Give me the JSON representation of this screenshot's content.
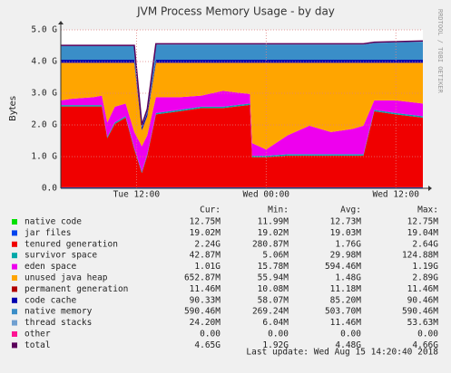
{
  "chart_data": {
    "type": "area",
    "title": "JVM Process Memory Usage - by day",
    "y_label": "Bytes",
    "watermark": "RRDTOOL / TOBI OETIKER",
    "xlim": [
      5,
      38.5
    ],
    "xticks": [
      {
        "value": 12,
        "label": "Tue 12:00"
      },
      {
        "value": 24,
        "label": "Wed 00:00"
      },
      {
        "value": 36,
        "label": "Wed 12:00"
      }
    ],
    "ylim": [
      0,
      5
    ],
    "yticks": [
      {
        "value": 0,
        "label": "0.0"
      },
      {
        "value": 1,
        "label": "1.0 G"
      },
      {
        "value": 2,
        "label": "2.0 G"
      },
      {
        "value": 3,
        "label": "3.0 G"
      },
      {
        "value": 4,
        "label": "4.0 G"
      },
      {
        "value": 5,
        "label": "5.0 G"
      }
    ],
    "grid": true,
    "x": [
      5,
      6,
      8,
      8.8,
      9.3,
      10,
      11,
      11.8,
      12.5,
      13,
      13.8,
      16,
      18,
      20,
      22.5,
      22.7,
      24,
      26,
      28,
      30,
      32,
      33,
      34,
      36,
      38.5
    ],
    "series": [
      {
        "name": "native code",
        "color": "#00e000",
        "stack": true,
        "values": [
          0.0128,
          0.0128,
          0.0128,
          0.0128,
          0.0128,
          0.0128,
          0.0128,
          0.0128,
          0.0128,
          0.0128,
          0.0128,
          0.0128,
          0.0128,
          0.0128,
          0.0128,
          0.0128,
          0.0128,
          0.0128,
          0.0128,
          0.0128,
          0.0128,
          0.0128,
          0.0128,
          0.0128,
          0.0128
        ]
      },
      {
        "name": "jar files",
        "color": "#0044ee",
        "stack": true,
        "values": [
          0.019,
          0.019,
          0.019,
          0.019,
          0.019,
          0.019,
          0.019,
          0.019,
          0.019,
          0.019,
          0.019,
          0.019,
          0.019,
          0.019,
          0.019,
          0.019,
          0.019,
          0.019,
          0.019,
          0.019,
          0.019,
          0.019,
          0.019,
          0.019,
          0.019
        ]
      },
      {
        "name": "tenured generation",
        "color": "#f00000",
        "stack": true,
        "values": [
          2.55,
          2.55,
          2.55,
          2.55,
          1.55,
          2.0,
          2.2,
          1.2,
          0.45,
          1.0,
          2.3,
          2.4,
          2.5,
          2.5,
          2.6,
          0.95,
          0.95,
          1.0,
          1.0,
          1.0,
          1.0,
          1.0,
          2.4,
          2.3,
          2.2
        ]
      },
      {
        "name": "survivor space",
        "color": "#00a8a8",
        "stack": true,
        "values": [
          0.043,
          0.043,
          0.043,
          0.043,
          0.043,
          0.043,
          0.043,
          0.043,
          0.043,
          0.043,
          0.043,
          0.043,
          0.043,
          0.043,
          0.043,
          0.043,
          0.043,
          0.043,
          0.043,
          0.043,
          0.043,
          0.043,
          0.043,
          0.043,
          0.043
        ]
      },
      {
        "name": "eden space",
        "color": "#ee00ee",
        "stack": true,
        "values": [
          0.15,
          0.2,
          0.25,
          0.3,
          0.45,
          0.5,
          0.4,
          0.5,
          0.8,
          0.6,
          0.5,
          0.4,
          0.35,
          0.5,
          0.3,
          0.4,
          0.2,
          0.6,
          0.9,
          0.7,
          0.8,
          0.9,
          0.3,
          0.4,
          0.4
        ]
      },
      {
        "name": "unused java heap",
        "color": "#ffa500",
        "stack": true,
        "values": [
          1.18,
          1.13,
          1.08,
          1.03,
          1.88,
          1.38,
          1.28,
          2.18,
          0.5,
          0.6,
          1.08,
          1.08,
          1.03,
          0.88,
          0.98,
          2.53,
          2.73,
          2.28,
          1.98,
          2.18,
          2.08,
          1.98,
          1.18,
          1.18,
          1.28
        ]
      },
      {
        "name": "permanent generation",
        "color": "#b00000",
        "stack": true,
        "values": [
          0.011,
          0.011,
          0.011,
          0.011,
          0.011,
          0.011,
          0.011,
          0.011,
          0.011,
          0.011,
          0.011,
          0.011,
          0.011,
          0.011,
          0.011,
          0.011,
          0.011,
          0.011,
          0.011,
          0.011,
          0.011,
          0.011,
          0.011,
          0.011,
          0.011
        ]
      },
      {
        "name": "code cache",
        "color": "#0000b0",
        "stack": true,
        "values": [
          0.09,
          0.09,
          0.09,
          0.09,
          0.09,
          0.09,
          0.09,
          0.09,
          0.09,
          0.09,
          0.09,
          0.09,
          0.09,
          0.09,
          0.09,
          0.09,
          0.09,
          0.09,
          0.09,
          0.09,
          0.09,
          0.09,
          0.09,
          0.09,
          0.09
        ]
      },
      {
        "name": "native memory",
        "color": "#3a8ec8",
        "stack": true,
        "values": [
          0.43,
          0.43,
          0.43,
          0.43,
          0.43,
          0.43,
          0.43,
          0.43,
          0.05,
          0.1,
          0.48,
          0.48,
          0.48,
          0.48,
          0.48,
          0.48,
          0.48,
          0.48,
          0.48,
          0.48,
          0.48,
          0.48,
          0.53,
          0.55,
          0.57
        ]
      },
      {
        "name": "thread stacks",
        "color": "#6f9fd0",
        "stack": true,
        "values": [
          0.024,
          0.024,
          0.024,
          0.024,
          0.024,
          0.024,
          0.024,
          0.024,
          0.024,
          0.024,
          0.024,
          0.024,
          0.024,
          0.024,
          0.024,
          0.024,
          0.024,
          0.024,
          0.024,
          0.024,
          0.024,
          0.024,
          0.024,
          0.024,
          0.024
        ]
      },
      {
        "name": "other",
        "color": "#ff1493",
        "stack": true,
        "values": [
          0,
          0,
          0,
          0,
          0,
          0,
          0,
          0,
          0,
          0,
          0,
          0,
          0,
          0,
          0,
          0,
          0,
          0,
          0,
          0,
          0,
          0,
          0,
          0,
          0
        ]
      },
      {
        "name": "total",
        "color": "#5a005a",
        "stack": false,
        "values": [
          4.51,
          4.51,
          4.51,
          4.51,
          4.51,
          4.51,
          4.51,
          4.51,
          2.0,
          2.5,
          4.56,
          4.56,
          4.56,
          4.56,
          4.56,
          4.56,
          4.56,
          4.56,
          4.56,
          4.56,
          4.56,
          4.56,
          4.61,
          4.63,
          4.65
        ]
      }
    ],
    "legend_headers": [
      "Cur:",
      "Min:",
      "Avg:",
      "Max:"
    ],
    "legend_stats": [
      [
        "12.75M",
        "11.99M",
        "12.73M",
        "12.75M"
      ],
      [
        "19.02M",
        "19.02M",
        "19.03M",
        "19.04M"
      ],
      [
        "2.24G",
        "280.87M",
        "1.76G",
        "2.64G"
      ],
      [
        "42.87M",
        "5.06M",
        "29.98M",
        "124.88M"
      ],
      [
        "1.01G",
        "15.78M",
        "594.46M",
        "1.19G"
      ],
      [
        "652.87M",
        "55.94M",
        "1.48G",
        "2.89G"
      ],
      [
        "11.46M",
        "10.08M",
        "11.18M",
        "11.46M"
      ],
      [
        "90.33M",
        "58.07M",
        "85.20M",
        "90.46M"
      ],
      [
        "590.46M",
        "269.24M",
        "503.70M",
        "590.46M"
      ],
      [
        "24.20M",
        "6.04M",
        "11.46M",
        "53.63M"
      ],
      [
        "0.00",
        "0.00",
        "0.00",
        "0.00"
      ],
      [
        "4.65G",
        "1.92G",
        "4.48G",
        "4.66G"
      ]
    ],
    "last_update": "Last update: Wed Aug 15 14:20:40 2018"
  }
}
